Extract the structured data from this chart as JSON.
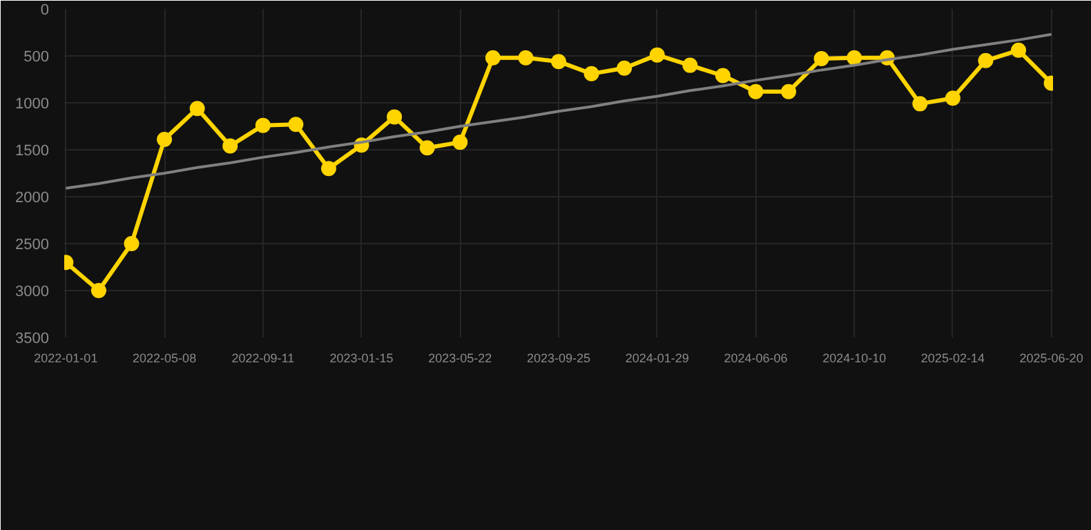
{
  "chart_data": {
    "type": "line",
    "categories": [
      "2022-01-01",
      null,
      null,
      "2022-05-08",
      null,
      null,
      "2022-09-11",
      null,
      null,
      "2023-01-15",
      null,
      null,
      "2023-05-22",
      null,
      null,
      "2023-09-25",
      null,
      null,
      "2024-01-29",
      null,
      null,
      "2024-06-06",
      null,
      null,
      "2024-10-10",
      null,
      null,
      "2025-02-14",
      null,
      null,
      "2025-06-20"
    ],
    "series": [
      {
        "color": "#ffd400",
        "marker": "circle",
        "values": [
          2700,
          3000,
          2500,
          1390,
          1060,
          1460,
          1240,
          1230,
          1700,
          1450,
          1150,
          1480,
          1420,
          520,
          520,
          560,
          690,
          630,
          490,
          600,
          710,
          880,
          880,
          530,
          520,
          520,
          1010,
          950,
          550,
          440,
          790
        ]
      },
      {
        "type": "line",
        "color": "#808080",
        "marker": "none",
        "values": [
          1910,
          1860,
          1800,
          1750,
          1690,
          1640,
          1580,
          1530,
          1470,
          1420,
          1360,
          1310,
          1250,
          1200,
          1150,
          1090,
          1040,
          980,
          930,
          870,
          820,
          760,
          710,
          650,
          600,
          540,
          490,
          430,
          380,
          330,
          270
        ]
      }
    ],
    "ylim": [
      3500,
      0
    ],
    "yticks": [
      0,
      500,
      1000,
      1500,
      2000,
      2500,
      3000,
      3500
    ],
    "grid": true
  }
}
